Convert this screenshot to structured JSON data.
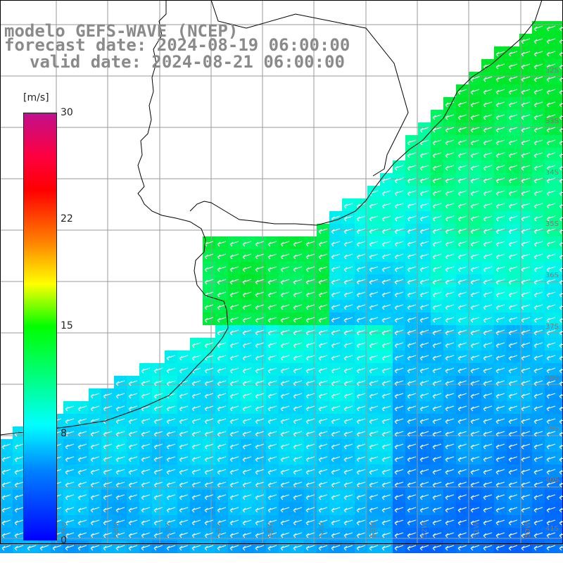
{
  "title": {
    "line1": "modelo GEFS-WAVE (NCEP)",
    "line2": "forecast date: 2024-08-19 06:00:00",
    "line3": "valid date: 2024-08-21 06:00:00"
  },
  "colorbar": {
    "unit": "[m/s]",
    "ticks": [
      "30",
      "22",
      "15",
      "8",
      "0"
    ],
    "tick_values": [
      30,
      22,
      15,
      8,
      0
    ]
  },
  "latitude_labels": [
    "32S",
    "33S",
    "34S",
    "35S",
    "36S",
    "37S",
    "38S",
    "39S",
    "40S",
    "41S"
  ],
  "longitude_labels": [
    "59W",
    "58W",
    "57W",
    "56W",
    "55W",
    "54W",
    "53W",
    "52W",
    "51W",
    "50W"
  ],
  "colors": {
    "land": "#ffffff",
    "grid": "#9a9a9a",
    "coast": "#000000",
    "arrow": "#ffffff",
    "title_text": "#8a8a8a"
  }
}
